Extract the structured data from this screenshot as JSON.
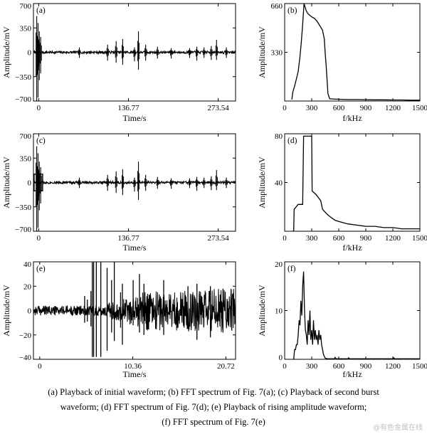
{
  "caption": {
    "line1": "(a) Playback of initial waveform; (b) FFT spectrum of Fig. 7(a); (c) Playback of second burst",
    "line2": "waveform; (d) FFT spectrum of Fig. 7(d); (e) Playback of rising amplitude waveform;",
    "line3": "(f) FFT spectrum of Fig. 7(e)"
  },
  "watermark": "@有色金属在线",
  "chart_data": [
    {
      "id": "a",
      "panel_label": "(a)",
      "type": "line",
      "xlabel": "Time/s",
      "ylabel": "Amplitude/mV",
      "xlim": [
        -8,
        300
      ],
      "ylim": [
        -700,
        700
      ],
      "xticks": [
        0,
        136.77,
        273.54
      ],
      "xtick_labels": [
        "0",
        "136.77",
        "273.54"
      ],
      "yticks": [
        -700,
        -350,
        0,
        350,
        700
      ],
      "ytick_labels": [
        "−700",
        "−350",
        "0",
        "350",
        "700"
      ],
      "baseline_noise": 18,
      "bursts": [
        [
          -3,
          520,
          700
        ],
        [
          -1,
          420,
          650
        ],
        [
          1,
          300,
          400
        ],
        [
          3,
          220,
          300
        ],
        [
          62,
          70,
          80
        ],
        [
          105,
          110,
          120
        ],
        [
          118,
          160,
          150
        ],
        [
          128,
          190,
          180
        ],
        [
          146,
          70,
          130
        ],
        [
          152,
          300,
          250
        ],
        [
          163,
          110,
          120
        ],
        [
          181,
          80,
          90
        ],
        [
          202,
          60,
          90
        ],
        [
          230,
          60,
          80
        ],
        [
          241,
          80,
          120
        ],
        [
          252,
          70,
          80
        ],
        [
          263,
          90,
          110
        ],
        [
          271,
          180,
          110
        ],
        [
          286,
          70,
          80
        ]
      ]
    },
    {
      "id": "b",
      "panel_label": "(b)",
      "type": "line",
      "xlabel": "f/kHz",
      "ylabel": "Amplitude/mV",
      "xlim": [
        0,
        1500
      ],
      "ylim": [
        0,
        660
      ],
      "xticks": [
        0,
        300,
        600,
        900,
        1200,
        1500
      ],
      "xtick_labels": [
        "0",
        "300",
        "600",
        "900",
        "1200",
        "1500"
      ],
      "yticks": [
        330,
        660
      ],
      "ytick_labels": [
        "330",
        "660"
      ],
      "x": [
        80,
        90,
        110,
        130,
        150,
        170,
        185,
        200,
        215,
        225,
        240,
        260,
        280,
        300,
        330,
        360,
        380,
        400,
        420,
        440,
        450,
        460,
        470,
        480,
        500,
        600,
        700,
        800,
        900,
        1000,
        1100,
        1200,
        1300,
        1400,
        1500
      ],
      "y": [
        10,
        60,
        100,
        150,
        200,
        300,
        400,
        520,
        660,
        640,
        610,
        590,
        580,
        570,
        560,
        540,
        520,
        500,
        480,
        420,
        320,
        240,
        150,
        50,
        15,
        12,
        10,
        10,
        9,
        8,
        8,
        7,
        7,
        6,
        6
      ]
    },
    {
      "id": "c",
      "panel_label": "(c)",
      "type": "line",
      "xlabel": "Time/s",
      "ylabel": "Amplitude/mV",
      "xlim": [
        -8,
        300
      ],
      "ylim": [
        -700,
        700
      ],
      "xticks": [
        0,
        136.77,
        273.54
      ],
      "xtick_labels": [
        "0",
        "136.77",
        "273.54"
      ],
      "yticks": [
        -700,
        -350,
        0,
        350,
        700
      ],
      "ytick_labels": [
        "−700",
        "−350",
        "0",
        "350",
        "700"
      ],
      "baseline_noise": 18,
      "highlight_box": [
        -7,
        6,
        -120,
        120
      ],
      "bursts": [
        [
          -3,
          520,
          700
        ],
        [
          -1,
          420,
          650
        ],
        [
          1,
          300,
          400
        ],
        [
          3,
          220,
          300
        ],
        [
          62,
          70,
          80
        ],
        [
          105,
          110,
          120
        ],
        [
          118,
          160,
          150
        ],
        [
          128,
          190,
          180
        ],
        [
          146,
          70,
          130
        ],
        [
          152,
          300,
          250
        ],
        [
          163,
          110,
          120
        ],
        [
          181,
          80,
          90
        ],
        [
          202,
          60,
          90
        ],
        [
          230,
          60,
          80
        ],
        [
          241,
          80,
          120
        ],
        [
          252,
          70,
          80
        ],
        [
          263,
          90,
          110
        ],
        [
          271,
          180,
          110
        ],
        [
          286,
          70,
          80
        ]
      ]
    },
    {
      "id": "d",
      "panel_label": "(d)",
      "type": "line",
      "xlabel": "f/kHz",
      "ylabel": "Amplitude/mV",
      "xlim": [
        0,
        1500
      ],
      "ylim": [
        0,
        80
      ],
      "xticks": [
        0,
        300,
        600,
        900,
        1200,
        1500
      ],
      "xtick_labels": [
        "0",
        "300",
        "600",
        "900",
        "1200",
        "1500"
      ],
      "yticks": [
        40,
        80
      ],
      "ytick_labels": [
        "40",
        "80"
      ],
      "x": [
        80,
        100,
        105,
        150,
        200,
        210,
        250,
        300,
        305,
        350,
        400,
        420,
        470,
        520,
        560,
        600,
        650,
        700,
        800,
        900,
        1000,
        1100,
        1200,
        1300,
        1400,
        1500
      ],
      "y": [
        0,
        0,
        18,
        22,
        22,
        78,
        78,
        78,
        33,
        30,
        25,
        18,
        14,
        11,
        9,
        8,
        7,
        6,
        5,
        4,
        4,
        3,
        3,
        2,
        2,
        2
      ]
    },
    {
      "id": "e",
      "panel_label": "(e)",
      "type": "line",
      "xlabel": "Time/s",
      "ylabel": "Amplitude/mV",
      "xlim": [
        -0.7,
        21.8
      ],
      "ylim": [
        -40,
        40
      ],
      "xticks": [
        0,
        10.36,
        20.72
      ],
      "xtick_labels": [
        "0",
        "10.36",
        "20.72"
      ],
      "yticks": [
        -40,
        -20,
        0,
        20,
        40
      ],
      "ytick_labels": [
        "−40",
        "−20",
        "0",
        "20",
        "40"
      ],
      "noise_profile": [
        [
          -0.7,
          4
        ],
        [
          5.5,
          4
        ],
        [
          7,
          5
        ],
        [
          9,
          9
        ],
        [
          12,
          16
        ],
        [
          16,
          17
        ],
        [
          21.8,
          18
        ]
      ],
      "spikes": [
        [
          5.0,
          12,
          10
        ],
        [
          5.3,
          9,
          9
        ],
        [
          5.7,
          16,
          13
        ],
        [
          5.85,
          40,
          38
        ],
        [
          6.0,
          40,
          38
        ],
        [
          6.3,
          40,
          38
        ],
        [
          6.8,
          40,
          38
        ],
        [
          7.5,
          35,
          33
        ],
        [
          8.0,
          25,
          18
        ],
        [
          8.3,
          40,
          25
        ],
        [
          9.0,
          15,
          14
        ],
        [
          9.2,
          22,
          28
        ],
        [
          10.4,
          25,
          12
        ],
        [
          11.1,
          30,
          18
        ],
        [
          11.6,
          22,
          20
        ],
        [
          13.8,
          25,
          20
        ],
        [
          16.5,
          20,
          15
        ],
        [
          17.5,
          22,
          24
        ],
        [
          19.0,
          20,
          22
        ],
        [
          20.4,
          18,
          18
        ]
      ]
    },
    {
      "id": "f",
      "panel_label": "(f)",
      "type": "line",
      "xlabel": "f/kHz",
      "ylabel": "Amplitude/mV",
      "xlim": [
        0,
        1500
      ],
      "ylim": [
        0,
        20
      ],
      "xticks": [
        0,
        300,
        600,
        900,
        1200,
        1500
      ],
      "xtick_labels": [
        "0",
        "300",
        "600",
        "900",
        "1200",
        "1500"
      ],
      "yticks": [
        0,
        10,
        20
      ],
      "ytick_labels": [
        "0",
        "10",
        "20"
      ],
      "x": [
        100,
        110,
        120,
        130,
        140,
        150,
        160,
        170,
        180,
        190,
        200,
        210,
        220,
        230,
        240,
        250,
        260,
        270,
        280,
        290,
        300,
        310,
        320,
        330,
        340,
        350,
        360,
        370,
        380,
        390,
        400,
        410,
        420,
        430,
        450,
        480,
        500,
        550,
        560,
        570,
        600,
        700,
        710,
        720,
        800,
        900,
        1000,
        1100,
        1200,
        1210,
        1220,
        1300,
        1400,
        1500
      ],
      "y": [
        0,
        2,
        2,
        3,
        3,
        5,
        8,
        7,
        12,
        9,
        15,
        18,
        10,
        6,
        5,
        3,
        8,
        5,
        10,
        4,
        6,
        3,
        8,
        4,
        6,
        4,
        5,
        3,
        6,
        4,
        5,
        3,
        2,
        1,
        0.2,
        0.1,
        0.1,
        0.1,
        0.4,
        0.1,
        0.1,
        0.1,
        0.3,
        0.1,
        0.1,
        0.1,
        0.1,
        0.1,
        0.1,
        0.3,
        0.1,
        0.1,
        0.1,
        0.1
      ]
    }
  ]
}
